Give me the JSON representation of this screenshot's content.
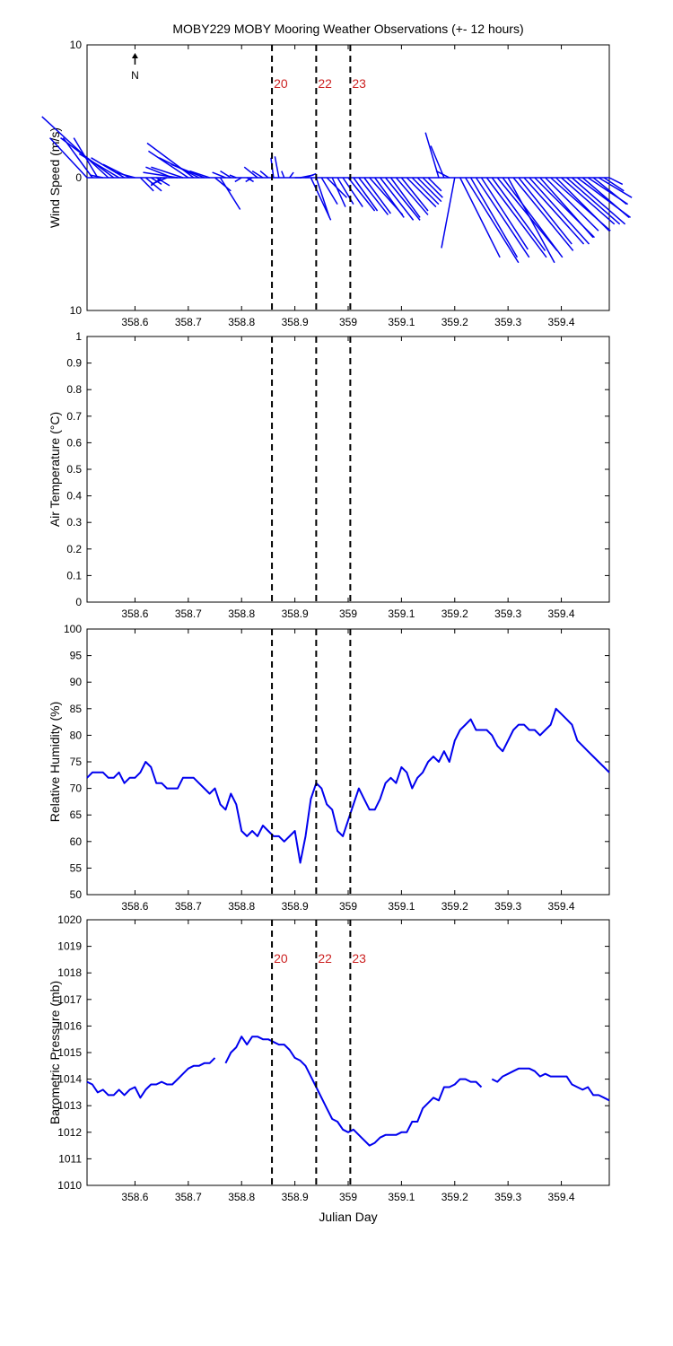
{
  "title": "MOBY229 MOBY Mooring Weather Observations (+- 12 hours)",
  "colors": {
    "series": "#0000ee",
    "events": "#cc2222",
    "axes": "#000000"
  },
  "chart_data": [
    {
      "type": "line",
      "subtype": "wind-stick",
      "ylabel": "Wind Speed (m/s)",
      "xlim": [
        358.51,
        359.49
      ],
      "ylim": [
        -10,
        10
      ],
      "ytick_labels": [
        "10",
        "0",
        "10"
      ],
      "xticks": [
        358.6,
        358.7,
        358.8,
        358.9,
        359,
        359.1,
        359.2,
        359.3,
        359.4
      ],
      "north_arrow_label": "N",
      "events": [
        {
          "x": 358.857,
          "label": "20"
        },
        {
          "x": 358.94,
          "label": "22"
        },
        {
          "x": 359.004,
          "label": "23"
        }
      ],
      "series": [
        {
          "x": [
            358.51,
            358.52,
            358.53,
            358.54,
            358.55,
            358.56,
            358.57,
            358.58,
            358.59,
            358.6,
            358.61,
            358.62,
            358.63,
            358.64,
            358.65,
            358.66,
            358.67,
            358.68,
            358.69,
            358.7,
            358.71,
            358.72,
            358.73,
            358.74,
            358.75,
            358.76,
            358.77,
            358.78,
            358.79,
            358.8,
            358.81,
            358.82,
            358.83,
            358.84,
            358.85,
            358.86,
            358.87,
            358.88,
            358.89,
            358.9,
            358.91,
            358.92,
            358.93,
            358.94,
            358.95,
            358.96,
            358.97,
            358.98,
            358.99,
            359.0,
            359.01,
            359.02,
            359.03,
            359.04,
            359.05,
            359.06,
            359.07,
            359.08,
            359.09,
            359.1,
            359.11,
            359.12,
            359.13,
            359.14,
            359.15,
            359.16,
            359.17,
            359.18,
            359.19,
            359.2,
            359.21,
            359.22,
            359.23,
            359.24,
            359.25,
            359.26,
            359.27,
            359.28,
            359.29,
            359.3,
            359.31,
            359.32,
            359.33,
            359.34,
            359.35,
            359.36,
            359.37,
            359.38,
            359.39,
            359.4,
            359.41,
            359.42,
            359.43,
            359.44,
            359.45,
            359.46,
            359.47,
            359.48,
            359.49
          ],
          "u": [
            -2.8,
            -2.2,
            -1.8,
            -1.0,
            -5.0,
            -4.0,
            -3.0,
            -2.5,
            -2.0,
            -1.5,
            1.0,
            1.2,
            0.8,
            1.0,
            -0.8,
            -1.2,
            -2.0,
            -2.6,
            -2.4,
            -3.0,
            -3.5,
            -3.0,
            -2.5,
            -1.5,
            1.2,
            1.5,
            -1.0,
            -0.8,
            -0.5,
            -0.5,
            0.5,
            -0.5,
            -1.0,
            -0.8,
            -0.6,
            -0.2,
            -0.3,
            -0.2,
            0.3,
            0.5,
            1.0,
            0.8,
            1.5,
            1.0,
            1.2,
            1.5,
            1.0,
            1.2,
            1.5,
            2.0,
            1.8,
            2.2,
            2.0,
            2.5,
            2.2,
            2.5,
            2.6,
            2.2,
            2.4,
            2.0,
            2.2,
            2.0,
            1.8,
            1.5,
            1.0,
            0.0,
            -1.0,
            -1.0,
            -1.0,
            -1.0,
            3.0,
            4.0,
            3.5,
            4.0,
            3.5,
            4.5,
            4.0,
            4.5,
            4.5,
            3.5,
            4.5,
            4.0,
            4.5,
            4.5,
            4.5,
            4.0,
            4.0,
            4.5,
            4.0,
            4.0,
            4.0,
            4.0,
            4.0,
            3.5,
            3.0,
            2.5,
            2.5,
            1.5,
            1.0
          ],
          "v": [
            -3.0,
            -3.0,
            -3.0,
            -0.2,
            -4.6,
            -3.0,
            -1.8,
            -1.5,
            -1.0,
            -0.4,
            1.0,
            1.0,
            0.5,
            0.6,
            0.6,
            0.5,
            -0.8,
            -0.4,
            -0.8,
            -2.0,
            -2.6,
            -1.5,
            -1.0,
            -0.5,
            1.0,
            2.4,
            -0.4,
            -0.5,
            -0.2,
            0.3,
            0.3,
            0.3,
            -0.8,
            -0.5,
            -0.5,
            -1.5,
            -1.6,
            -0.5,
            -0.4,
            0.0,
            -0.2,
            -0.3,
            3.2,
            3.0,
            2.0,
            1.5,
            2.2,
            2.0,
            2.2,
            2.5,
            2.5,
            2.8,
            2.7,
            2.8,
            3.0,
            3.2,
            3.2,
            3.0,
            2.8,
            2.5,
            2.2,
            2.0,
            1.8,
            1.5,
            1.0,
            0.0,
            -3.4,
            -2.4,
            -0.5,
            5.3,
            6.0,
            6.4,
            6.0,
            6.0,
            5.4,
            6.0,
            5.5,
            5.5,
            6.0,
            6.4,
            5.5,
            5.0,
            5.0,
            5.0,
            4.5,
            4.5,
            4.0,
            4.0,
            4.0,
            3.5,
            3.5,
            3.5,
            3.0,
            3.0,
            2.0,
            2.0,
            1.5,
            1.0,
            0.5
          ]
        }
      ]
    },
    {
      "type": "line",
      "ylabel": "Air Temperature (°C)",
      "xlim": [
        358.51,
        359.49
      ],
      "ylim": [
        0,
        1
      ],
      "yticks": [
        0,
        0.1,
        0.2,
        0.3,
        0.4,
        0.5,
        0.6,
        0.7,
        0.8,
        0.9,
        1
      ],
      "xticks": [
        358.6,
        358.7,
        358.8,
        358.9,
        359,
        359.1,
        359.2,
        359.3,
        359.4
      ],
      "events": [
        {
          "x": 358.857
        },
        {
          "x": 358.94
        },
        {
          "x": 359.004
        }
      ],
      "series": []
    },
    {
      "type": "line",
      "ylabel": "Relative Humidity (%)",
      "xlim": [
        358.51,
        359.49
      ],
      "ylim": [
        50,
        100
      ],
      "yticks": [
        50,
        55,
        60,
        65,
        70,
        75,
        80,
        85,
        90,
        95,
        100
      ],
      "xticks": [
        358.6,
        358.7,
        358.8,
        358.9,
        359,
        359.1,
        359.2,
        359.3,
        359.4
      ],
      "events": [
        {
          "x": 358.857
        },
        {
          "x": 358.94
        },
        {
          "x": 359.004
        }
      ],
      "series": [
        {
          "x": [
            358.51,
            358.52,
            358.53,
            358.54,
            358.55,
            358.56,
            358.57,
            358.58,
            358.59,
            358.6,
            358.61,
            358.62,
            358.63,
            358.64,
            358.65,
            358.66,
            358.67,
            358.68,
            358.69,
            358.7,
            358.71,
            358.72,
            358.73,
            358.74,
            358.75,
            358.76,
            358.77,
            358.78,
            358.79,
            358.8,
            358.81,
            358.82,
            358.83,
            358.84,
            358.85,
            358.86,
            358.87,
            358.88,
            358.89,
            358.9,
            358.91,
            358.92,
            358.93,
            358.94,
            358.95,
            358.96,
            358.97,
            358.98,
            358.99,
            359.0,
            359.01,
            359.02,
            359.03,
            359.04,
            359.05,
            359.06,
            359.07,
            359.08,
            359.09,
            359.1,
            359.11,
            359.12,
            359.13,
            359.14,
            359.15,
            359.16,
            359.17,
            359.18,
            359.19,
            359.2,
            359.21,
            359.22,
            359.23,
            359.24,
            359.25,
            359.26,
            359.27,
            359.28,
            359.29,
            359.3,
            359.31,
            359.32,
            359.33,
            359.34,
            359.35,
            359.36,
            359.37,
            359.38,
            359.39,
            359.4,
            359.41,
            359.42,
            359.43,
            359.44,
            359.45,
            359.46,
            359.47,
            359.48,
            359.49
          ],
          "y": [
            72,
            73,
            73,
            73,
            72,
            72,
            73,
            71,
            72,
            72,
            73,
            75,
            74,
            71,
            71,
            70,
            70,
            70,
            72,
            72,
            72,
            71,
            70,
            69,
            70,
            67,
            66,
            69,
            67,
            62,
            61,
            62,
            61,
            63,
            62,
            61,
            61,
            60,
            61,
            62,
            56,
            61,
            68,
            71,
            70,
            67,
            66,
            62,
            61,
            64,
            67,
            70,
            68,
            66,
            66,
            68,
            71,
            72,
            71,
            74,
            73,
            70,
            72,
            73,
            75,
            76,
            75,
            77,
            75,
            79,
            81,
            82,
            83,
            81,
            81,
            81,
            80,
            78,
            77,
            79,
            81,
            82,
            82,
            81,
            81,
            80,
            81,
            82,
            85,
            84,
            83,
            82,
            79,
            78,
            77,
            76,
            75,
            74,
            73
          ]
        }
      ]
    },
    {
      "type": "line",
      "ylabel": "Barometric Pressure (mb)",
      "xlabel": "Julian Day",
      "xlim": [
        358.51,
        359.49
      ],
      "ylim": [
        1010,
        1020
      ],
      "yticks": [
        1010,
        1011,
        1012,
        1013,
        1014,
        1015,
        1016,
        1017,
        1018,
        1019,
        1020
      ],
      "xticks": [
        358.6,
        358.7,
        358.8,
        358.9,
        359,
        359.1,
        359.2,
        359.3,
        359.4
      ],
      "events": [
        {
          "x": 358.857,
          "label": "20"
        },
        {
          "x": 358.94,
          "label": "22"
        },
        {
          "x": 359.004,
          "label": "23"
        }
      ],
      "series": [
        {
          "segments": [
            {
              "x": [
                358.51,
                358.52,
                358.53,
                358.54,
                358.55,
                358.56,
                358.57,
                358.58,
                358.59,
                358.6,
                358.61,
                358.62,
                358.63,
                358.64,
                358.65,
                358.66,
                358.67,
                358.68,
                358.69,
                358.7,
                358.71,
                358.72,
                358.73,
                358.74,
                358.75
              ],
              "y": [
                1013.9,
                1013.8,
                1013.5,
                1013.6,
                1013.4,
                1013.4,
                1013.6,
                1013.4,
                1013.6,
                1013.7,
                1013.3,
                1013.6,
                1013.8,
                1013.8,
                1013.9,
                1013.8,
                1013.8,
                1014.0,
                1014.2,
                1014.4,
                1014.5,
                1014.5,
                1014.6,
                1014.6,
                1014.8
              ]
            },
            {
              "x": [
                358.77,
                358.78,
                358.79,
                358.8,
                358.81,
                358.82,
                358.83,
                358.84,
                358.85,
                358.86,
                358.87,
                358.88,
                358.89,
                358.9,
                358.91,
                358.92,
                358.93,
                358.94,
                358.95,
                358.96,
                358.97,
                358.98,
                358.99,
                359.0,
                359.01,
                359.02,
                359.03,
                359.04,
                359.05,
                359.06,
                359.07,
                359.08,
                359.09,
                359.1,
                359.11,
                359.12,
                359.13,
                359.14,
                359.15,
                359.16,
                359.17,
                359.18,
                359.19,
                359.2,
                359.21,
                359.22,
                359.23,
                359.24,
                359.25
              ],
              "y": [
                1014.6,
                1015.0,
                1015.2,
                1015.6,
                1015.3,
                1015.6,
                1015.6,
                1015.5,
                1015.5,
                1015.4,
                1015.3,
                1015.3,
                1015.1,
                1014.8,
                1014.7,
                1014.5,
                1014.1,
                1013.7,
                1013.3,
                1012.9,
                1012.5,
                1012.4,
                1012.1,
                1012.0,
                1012.1,
                1011.9,
                1011.7,
                1011.5,
                1011.6,
                1011.8,
                1011.9,
                1011.9,
                1011.9,
                1012.0,
                1012.0,
                1012.4,
                1012.4,
                1012.9,
                1013.1,
                1013.3,
                1013.2,
                1013.7,
                1013.7,
                1013.8,
                1014.0,
                1014.0,
                1013.9,
                1013.9,
                1013.7
              ]
            },
            {
              "x": [
                359.27,
                359.28,
                359.29,
                359.3,
                359.31,
                359.32,
                359.33,
                359.34,
                359.35,
                359.36,
                359.37,
                359.38,
                359.39,
                359.4,
                359.41,
                359.42,
                359.43,
                359.44,
                359.45,
                359.46,
                359.47,
                359.48,
                359.49
              ],
              "y": [
                1014.0,
                1013.9,
                1014.1,
                1014.2,
                1014.3,
                1014.4,
                1014.4,
                1014.4,
                1014.3,
                1014.1,
                1014.2,
                1014.1,
                1014.1,
                1014.1,
                1014.1,
                1013.8,
                1013.7,
                1013.6,
                1013.7,
                1013.4,
                1013.4,
                1013.3,
                1013.2
              ]
            }
          ]
        }
      ]
    }
  ]
}
